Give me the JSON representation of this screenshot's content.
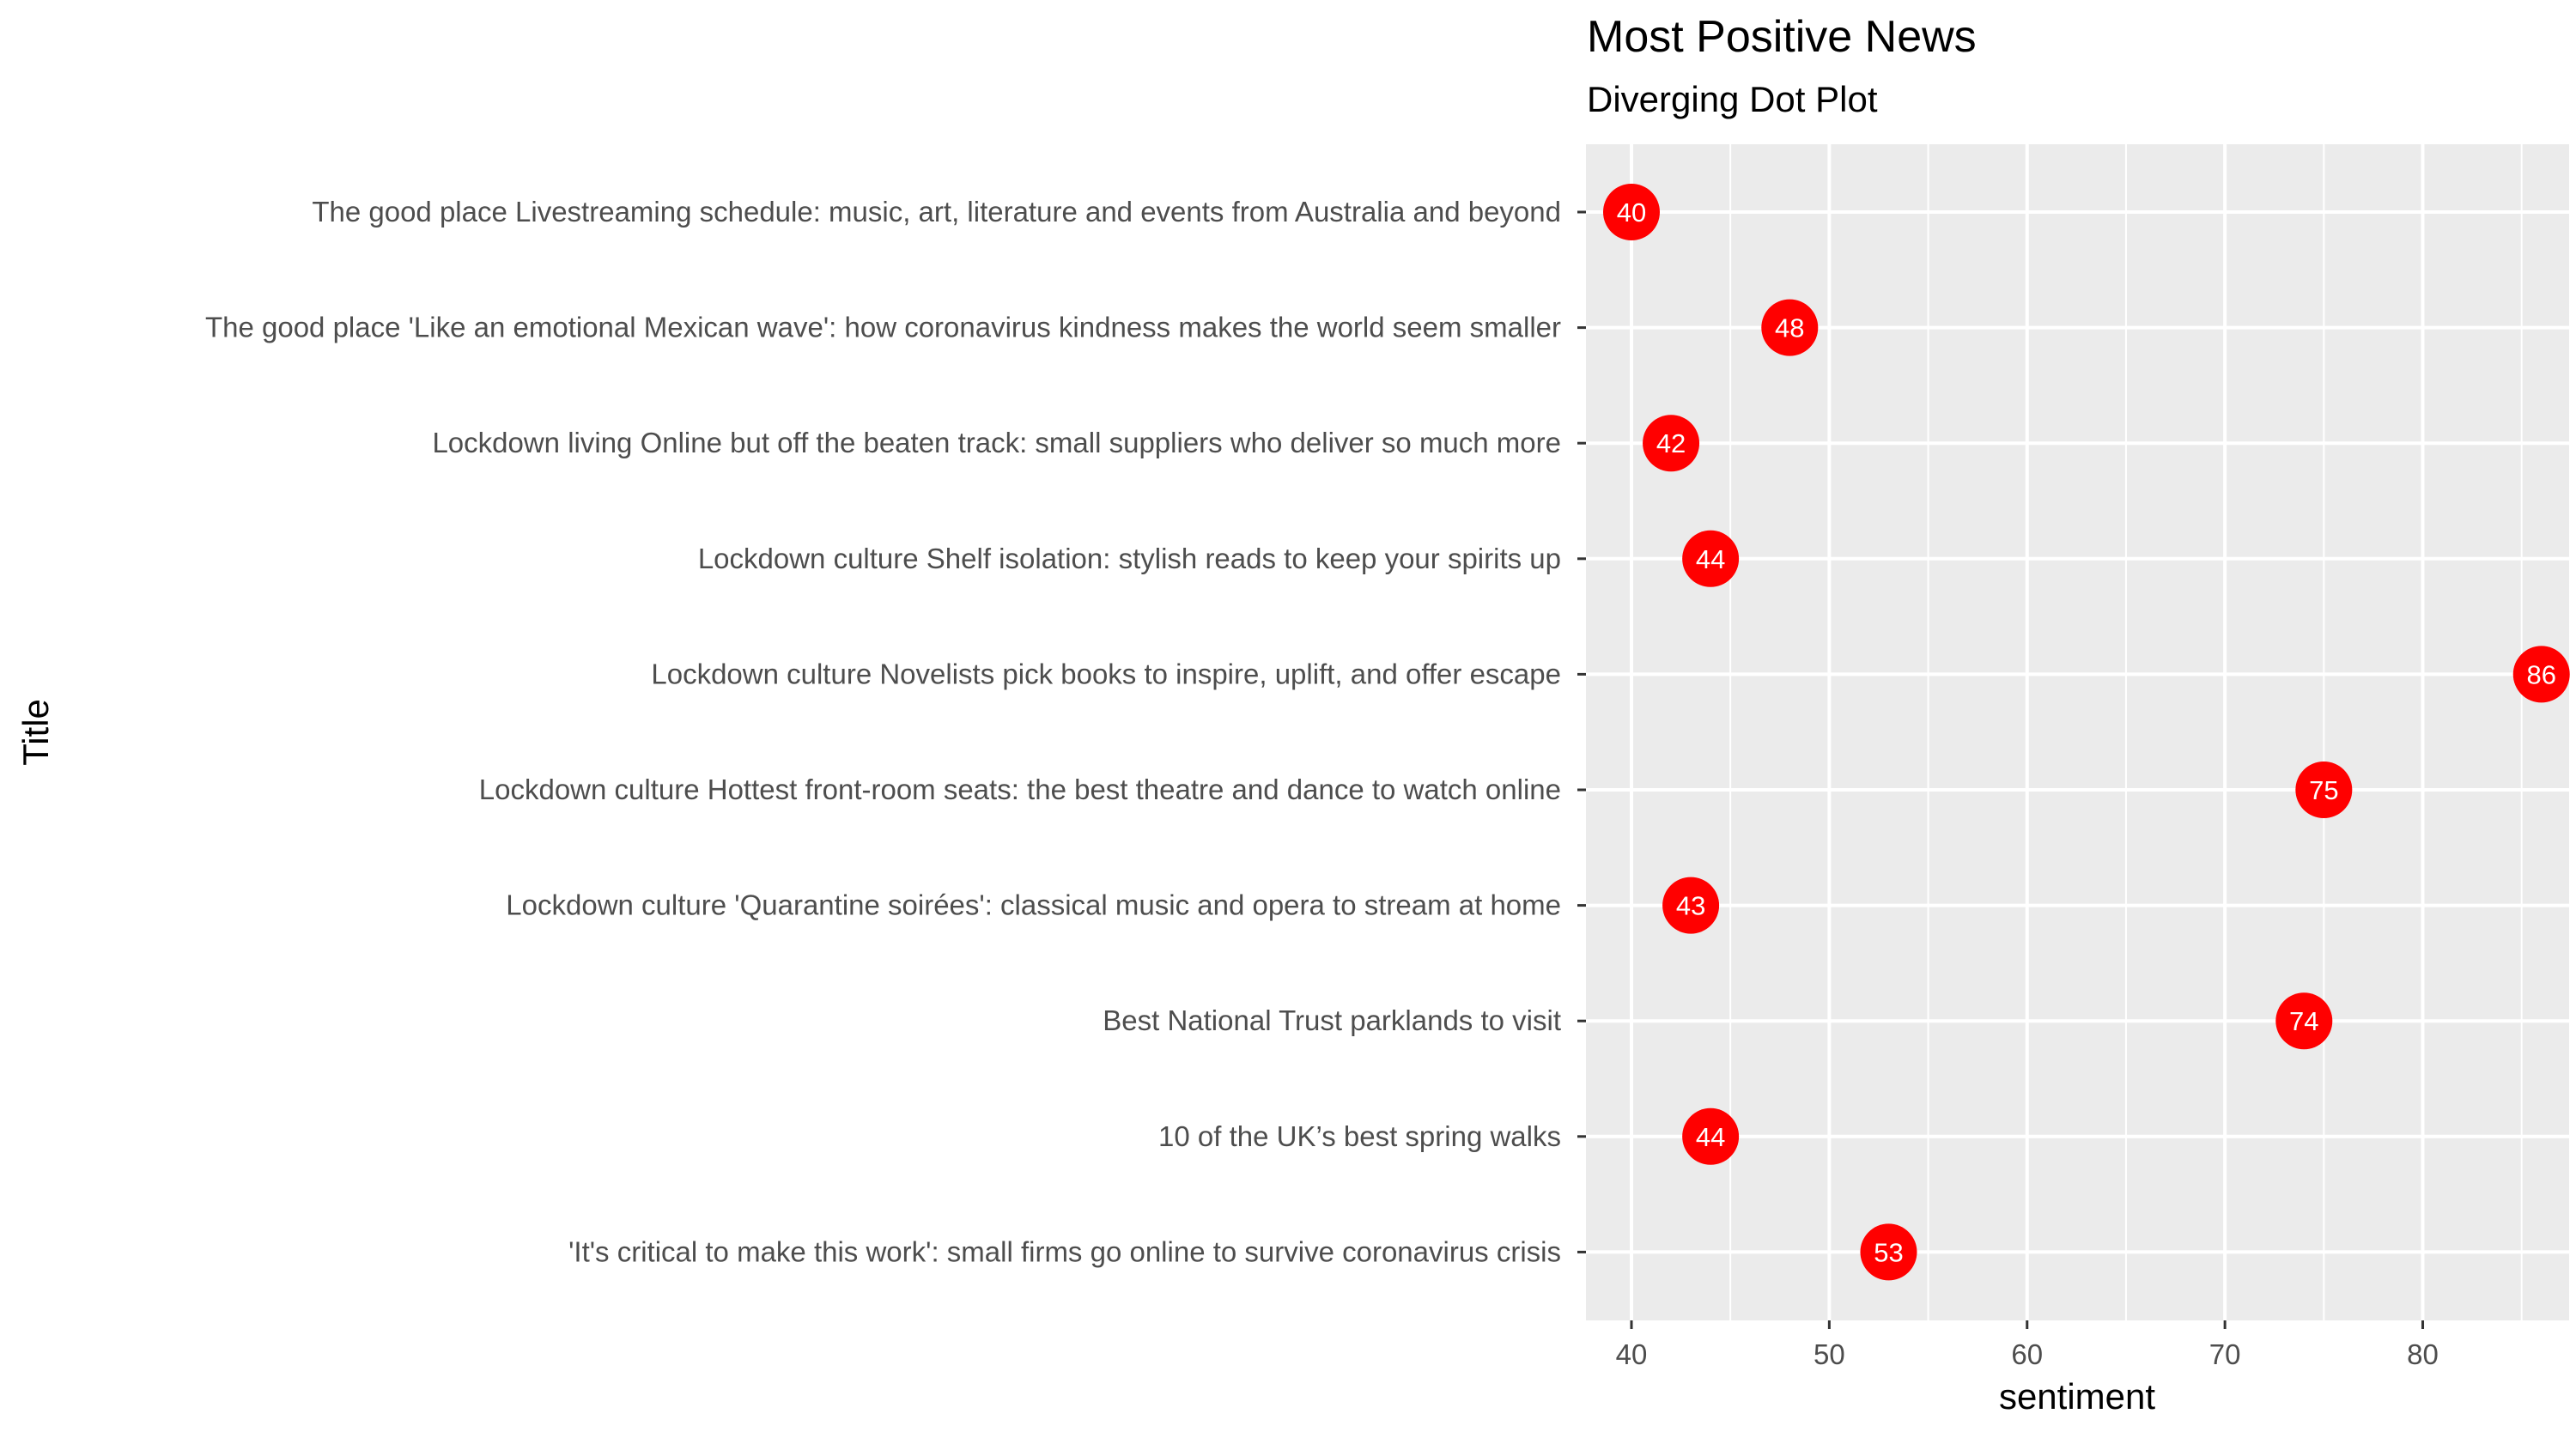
{
  "chart_data": {
    "type": "scatter",
    "title": "Most Positive News",
    "subtitle": "Diverging Dot Plot",
    "xlabel": "sentiment",
    "ylabel": "Title",
    "xlim": [
      37.7,
      87.4
    ],
    "x_ticks": [
      40,
      50,
      60,
      70,
      80
    ],
    "grid": true,
    "legend": "none",
    "colors": {
      "panel": "#ebebeb",
      "grid": "#ffffff",
      "point": "#ff0000",
      "point_label": "#ffffff",
      "tick_text": "#4d4d4d",
      "axis_title": "#000000"
    },
    "categories": [
      "The good place  Livestreaming schedule: music, art, literature and events from Australia and beyond",
      "The good place  'Like an emotional Mexican wave': how coronavirus kindness makes the world seem smaller",
      "Lockdown living  Online but off the beaten track: small suppliers who deliver so much more",
      "Lockdown culture  Shelf isolation: stylish reads to keep your spirits up",
      "Lockdown culture  Novelists pick books to inspire, uplift, and offer escape",
      "Lockdown culture  Hottest front-room seats: the best theatre and dance to watch online",
      "Lockdown culture  'Quarantine soirées': classical music and opera to stream at home",
      "Best National Trust parklands to visit",
      "10 of the UK’s best spring walks",
      "'It's critical to make this work': small firms go online to survive coronavirus crisis"
    ],
    "values": [
      40,
      48,
      42,
      44,
      86,
      75,
      43,
      74,
      44,
      53
    ]
  }
}
